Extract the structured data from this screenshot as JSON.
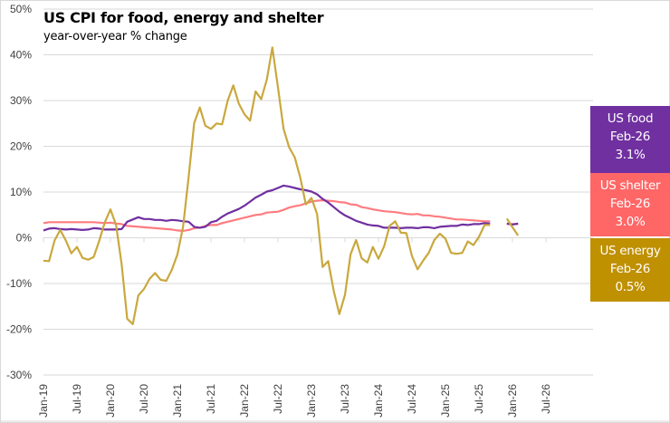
{
  "chart_data": {
    "type": "line",
    "title": "US CPI for food, energy and shelter",
    "subtitle": "year-over-year % change",
    "xlabel": "",
    "ylabel": "",
    "ylim": [
      -30,
      50
    ],
    "yticks": [
      -30,
      -20,
      -10,
      0,
      10,
      20,
      30,
      40,
      50
    ],
    "ytick_labels": [
      "-30%",
      "-20%",
      "-10%",
      "0%",
      "10%",
      "20%",
      "30%",
      "40%",
      "50%"
    ],
    "xtick_labels": [
      "Jan-19",
      "Jul-19",
      "Jan-20",
      "Jul-20",
      "Jan-21",
      "Jul-21",
      "Jan-22",
      "Jul-22",
      "Jan-23",
      "Jul-23",
      "Jan-24",
      "Jul-24",
      "Jan-25",
      "Jul-25",
      "Jan-26",
      "Jul-26"
    ],
    "x_start": "Jan-19",
    "x_end": "Jul-26",
    "grid": true,
    "legend_position": "right",
    "series": [
      {
        "name": "US food",
        "color": "#7030A0",
        "values": [
          1.6,
          2.0,
          2.1,
          1.9,
          1.8,
          1.9,
          1.8,
          1.7,
          1.8,
          2.1,
          2.0,
          1.8,
          1.8,
          1.8,
          1.9,
          3.5,
          4.0,
          4.5,
          4.1,
          4.1,
          3.9,
          3.9,
          3.7,
          3.9,
          3.8,
          3.6,
          3.5,
          2.4,
          2.2,
          2.4,
          3.4,
          3.7,
          4.6,
          5.3,
          5.8,
          6.3,
          7.0,
          7.9,
          8.8,
          9.4,
          10.1,
          10.4,
          10.9,
          11.4,
          11.2,
          10.9,
          10.6,
          10.4,
          10.1,
          9.5,
          8.5,
          7.7,
          6.7,
          5.7,
          4.9,
          4.3,
          3.7,
          3.3,
          2.9,
          2.7,
          2.6,
          2.2,
          2.2,
          2.2,
          2.1,
          2.2,
          2.2,
          2.1,
          2.3,
          2.3,
          2.1,
          2.4,
          2.5,
          2.6,
          2.6,
          2.9,
          2.8,
          3.0,
          3.0,
          3.2,
          3.1,
          null,
          null,
          3.1,
          2.9,
          3.1
        ],
        "latest_label": "Feb-26",
        "latest_value": "3.1%"
      },
      {
        "name": "US shelter",
        "color": "#FF7C80",
        "values": [
          3.2,
          3.4,
          3.4,
          3.4,
          3.4,
          3.4,
          3.4,
          3.4,
          3.4,
          3.4,
          3.3,
          3.2,
          3.3,
          3.1,
          3.0,
          2.6,
          2.5,
          2.4,
          2.3,
          2.2,
          2.1,
          2.0,
          1.9,
          1.8,
          1.6,
          1.5,
          1.7,
          2.1,
          2.2,
          2.6,
          2.8,
          2.8,
          3.2,
          3.5,
          3.8,
          4.1,
          4.4,
          4.7,
          5.0,
          5.1,
          5.5,
          5.6,
          5.7,
          6.1,
          6.6,
          6.9,
          7.1,
          7.5,
          7.9,
          8.1,
          8.2,
          8.1,
          8.0,
          7.8,
          7.7,
          7.3,
          7.2,
          6.7,
          6.5,
          6.2,
          6.0,
          5.8,
          5.7,
          5.6,
          5.4,
          5.2,
          5.1,
          5.2,
          4.9,
          4.9,
          4.7,
          4.6,
          4.4,
          4.2,
          4.0,
          4.0,
          3.9,
          3.8,
          3.7,
          3.6,
          3.6,
          null,
          null,
          3.0,
          3.0,
          3.0
        ],
        "latest_label": "Feb-26",
        "latest_value": "3.0%"
      },
      {
        "name": "US energy",
        "color": "#BF9000",
        "values": [
          -5.0,
          -5.1,
          -0.6,
          1.7,
          -0.6,
          -3.4,
          -2.0,
          -4.4,
          -4.8,
          -4.2,
          -0.6,
          3.4,
          6.2,
          2.8,
          -5.7,
          -17.7,
          -18.9,
          -12.6,
          -11.2,
          -9.0,
          -7.7,
          -9.2,
          -9.4,
          -7.0,
          -3.6,
          2.4,
          13.2,
          25.1,
          28.5,
          24.5,
          23.8,
          25.0,
          24.8,
          30.0,
          33.3,
          29.3,
          27.0,
          25.6,
          32.0,
          30.3,
          34.6,
          41.6,
          32.9,
          23.8,
          19.8,
          17.6,
          13.1,
          7.3,
          8.7,
          5.2,
          -6.4,
          -5.1,
          -11.7,
          -16.7,
          -12.5,
          -3.6,
          -0.5,
          -4.5,
          -5.4,
          -2.0,
          -4.6,
          -1.9,
          2.6,
          3.6,
          1.1,
          1.0,
          -4.0,
          -6.9,
          -5.0,
          -3.3,
          -0.5,
          0.9,
          -0.2,
          -3.3,
          -3.5,
          -3.3,
          -0.8,
          -1.6,
          0.2,
          2.8,
          2.8,
          null,
          null,
          4.2,
          2.3,
          0.5
        ],
        "latest_label": "Feb-26",
        "latest_value": "0.5%"
      }
    ]
  },
  "legend": [
    {
      "name": "US food",
      "date": "Feb-26",
      "value": "3.1%",
      "color": "#7030A0"
    },
    {
      "name": "US shelter",
      "date": "Feb-26",
      "value": "3.0%",
      "color": "#FF6666"
    },
    {
      "name": "US energy",
      "date": "Feb-26",
      "value": "0.5%",
      "color": "#BF9000"
    }
  ]
}
